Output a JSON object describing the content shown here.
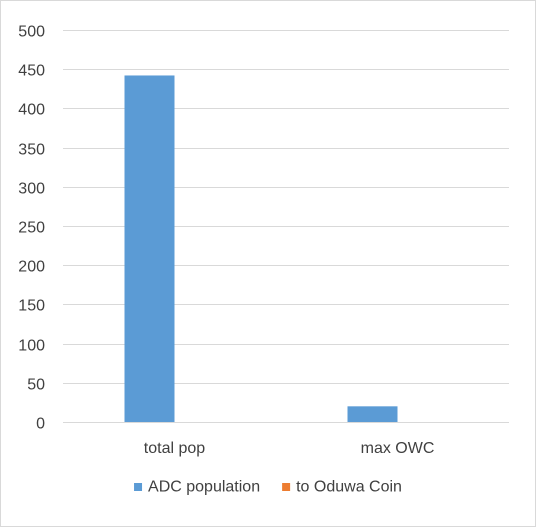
{
  "chart_data": {
    "type": "bar",
    "categories": [
      "total pop",
      "max OWC"
    ],
    "series": [
      {
        "name": "ADC population",
        "values": [
          442,
          20
        ]
      },
      {
        "name": "to Oduwa Coin",
        "values": [
          0,
          0
        ]
      }
    ],
    "ylim": [
      0,
      500
    ],
    "yticks": [
      0,
      50,
      100,
      150,
      200,
      250,
      300,
      350,
      400,
      450,
      500
    ],
    "grid": true,
    "legend_position": "bottom",
    "colors": {
      "series": [
        "#5b9bd5",
        "#ed7d31"
      ],
      "grid": "#d9d9d9",
      "text": "#404040"
    }
  }
}
